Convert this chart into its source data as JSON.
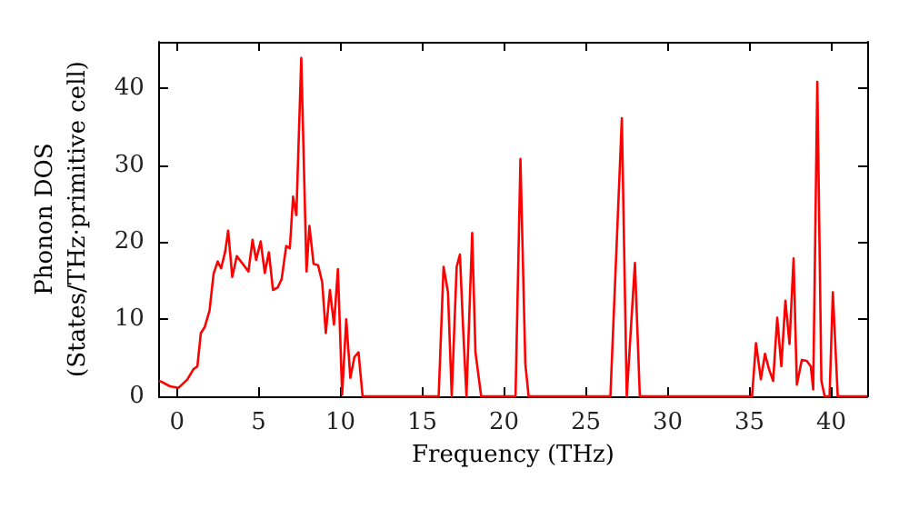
{
  "chart_data": {
    "type": "line",
    "xlabel": "Frequency (THz)",
    "ylabel": "Phonon DOS\n(States/THz·primitive cell)",
    "xlim": [
      -1.1,
      42.2
    ],
    "ylim": [
      0,
      46
    ],
    "xticks": [
      0,
      5,
      10,
      15,
      20,
      25,
      30,
      35,
      40
    ],
    "yticks": [
      0,
      10,
      20,
      30,
      40
    ],
    "grid": false,
    "marker": "none",
    "line_style": "solid",
    "series": [
      {
        "color": "#ff0000",
        "x": [
          -1.1,
          -0.96,
          -0.43,
          0.1,
          0.64,
          1.0,
          1.25,
          1.46,
          1.7,
          1.99,
          2.24,
          2.49,
          2.7,
          2.95,
          3.13,
          3.38,
          3.66,
          4.37,
          4.62,
          4.84,
          5.12,
          5.37,
          5.62,
          5.87,
          6.15,
          6.4,
          6.68,
          6.9,
          7.1,
          7.3,
          7.6,
          7.92,
          8.1,
          8.35,
          8.63,
          8.88,
          9.1,
          9.35,
          9.6,
          9.84,
          10.1,
          10.35,
          10.6,
          10.85,
          11.1,
          11.35,
          16.0,
          16.3,
          16.57,
          16.8,
          17.1,
          17.3,
          17.5,
          17.7,
          18.05,
          18.25,
          18.6,
          20.7,
          21.0,
          21.3,
          21.5,
          26.5,
          27.2,
          27.5,
          28.0,
          28.3,
          35.16,
          35.4,
          35.7,
          35.95,
          36.2,
          36.45,
          36.7,
          36.95,
          37.2,
          37.45,
          37.7,
          37.9,
          38.2,
          38.5,
          38.75,
          38.9,
          39.15,
          39.4,
          39.6,
          39.9,
          40.1,
          40.4,
          42.2
        ],
        "values": [
          2.0,
          1.9,
          1.3,
          1.1,
          2.2,
          3.5,
          3.9,
          8.2,
          9.0,
          11.1,
          15.9,
          17.5,
          16.6,
          18.8,
          21.5,
          15.5,
          18.2,
          16.2,
          20.3,
          17.7,
          20.1,
          16.0,
          18.7,
          13.8,
          14.1,
          15.2,
          19.5,
          19.2,
          25.9,
          23.5,
          43.9,
          16.2,
          22.1,
          17.2,
          17.0,
          14.8,
          8.2,
          13.8,
          9.3,
          16.5,
          0.2,
          10.0,
          2.4,
          5.1,
          5.7,
          0,
          0,
          16.8,
          13.5,
          0,
          16.8,
          18.4,
          8.6,
          0,
          21.2,
          5.7,
          0,
          0,
          30.8,
          4.2,
          0,
          0,
          36.1,
          0,
          17.3,
          0,
          0,
          6.9,
          2.2,
          5.5,
          3.5,
          2.0,
          10.2,
          3.9,
          12.4,
          6.8,
          17.9,
          1.5,
          4.7,
          4.6,
          3.9,
          0.9,
          40.8,
          2.0,
          0,
          0,
          13.5,
          0,
          0
        ]
      }
    ]
  }
}
